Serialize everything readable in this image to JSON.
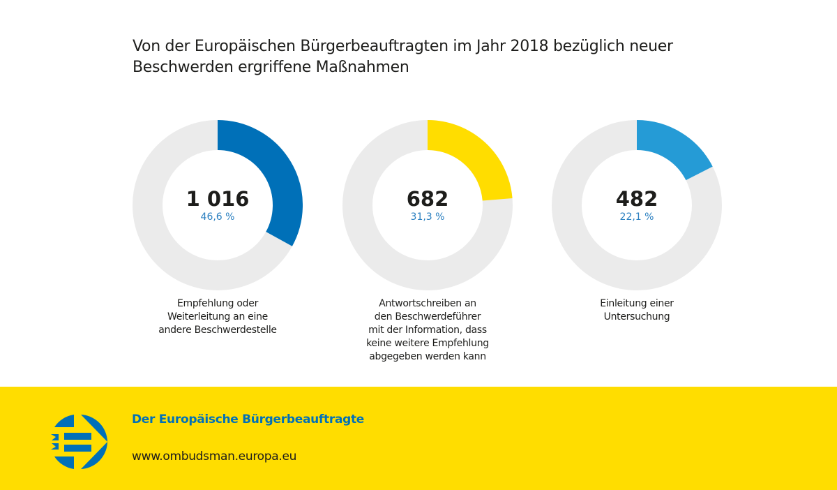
{
  "chart_data": {
    "type": "pie",
    "subtype": "donut-set",
    "title": "Von der Europäischen Bürgerbeauftragten im Jahr 2018 bezüglich neuer Beschwerden ergriffene Maßnahmen",
    "track_color": "#ebebeb",
    "series": [
      {
        "name": "Empfehlung oder Weiterleitung an eine andere Beschwerdestelle",
        "value": 1016,
        "value_label": "1 016",
        "percent": 46.6,
        "percent_label": "46,6 %",
        "caption": "Empfehlung oder\nWeiterleitung an eine\nandere Beschwerdestelle",
        "color": "#0070b8",
        "arc_fraction": 0.33
      },
      {
        "name": "Antwortschreiben an den Beschwerdeführer mit der Information, dass keine weitere Empfehlung abgegeben werden kann",
        "value": 682,
        "value_label": "682",
        "percent": 31.3,
        "percent_label": "31,3 %",
        "caption": "Antwortschreiben an\nden Beschwerdeführer\nmit der Information, dass\nkeine weitere Empfehlung\nabgegeben werden kann",
        "color": "#ffdd00",
        "arc_fraction": 0.237
      },
      {
        "name": "Einleitung einer Untersuchung",
        "value": 482,
        "value_label": "482",
        "percent": 22.1,
        "percent_label": "22,1 %",
        "caption": "Einleitung einer\nUntersuchung",
        "color": "#259bd6",
        "arc_fraction": 0.175
      }
    ]
  },
  "footer": {
    "background": "#ffdd00",
    "organization": "Der Europäische Bürgerbeauftragte",
    "organization_color": "#0070b8",
    "url": "www.ombudsman.europa.eu",
    "logo_icon": "european-ombudsman-logo-icon",
    "logo_color": "#0070b8"
  }
}
